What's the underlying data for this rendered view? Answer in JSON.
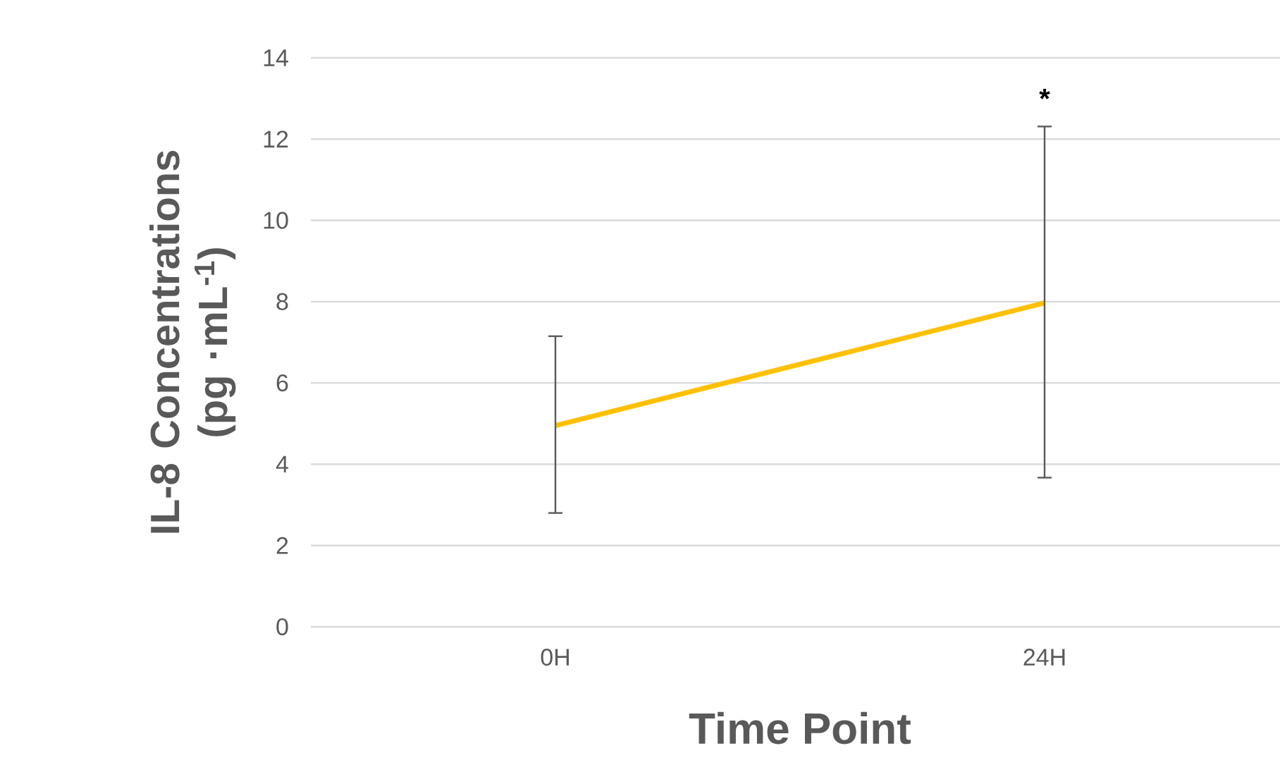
{
  "chart_data": {
    "type": "line",
    "xlabel": "Time Point",
    "ylabel": "IL-8 Concentrations (pg ·mL$^{-1}$)",
    "categories": [
      "0H",
      "24H"
    ],
    "series": [
      {
        "color": "#ffc000",
        "values": [
          4.95,
          7.97
        ],
        "errors": [
          [
            2.8,
            7.15
          ],
          [
            3.67,
            12.31
          ]
        ]
      }
    ],
    "ylim": [
      0,
      14
    ],
    "yticks": [
      0,
      2,
      4,
      6,
      8,
      10,
      12,
      14
    ],
    "grid": "y",
    "marker": "none",
    "line_style": "solid",
    "annotations": [
      "*"
    ]
  }
}
